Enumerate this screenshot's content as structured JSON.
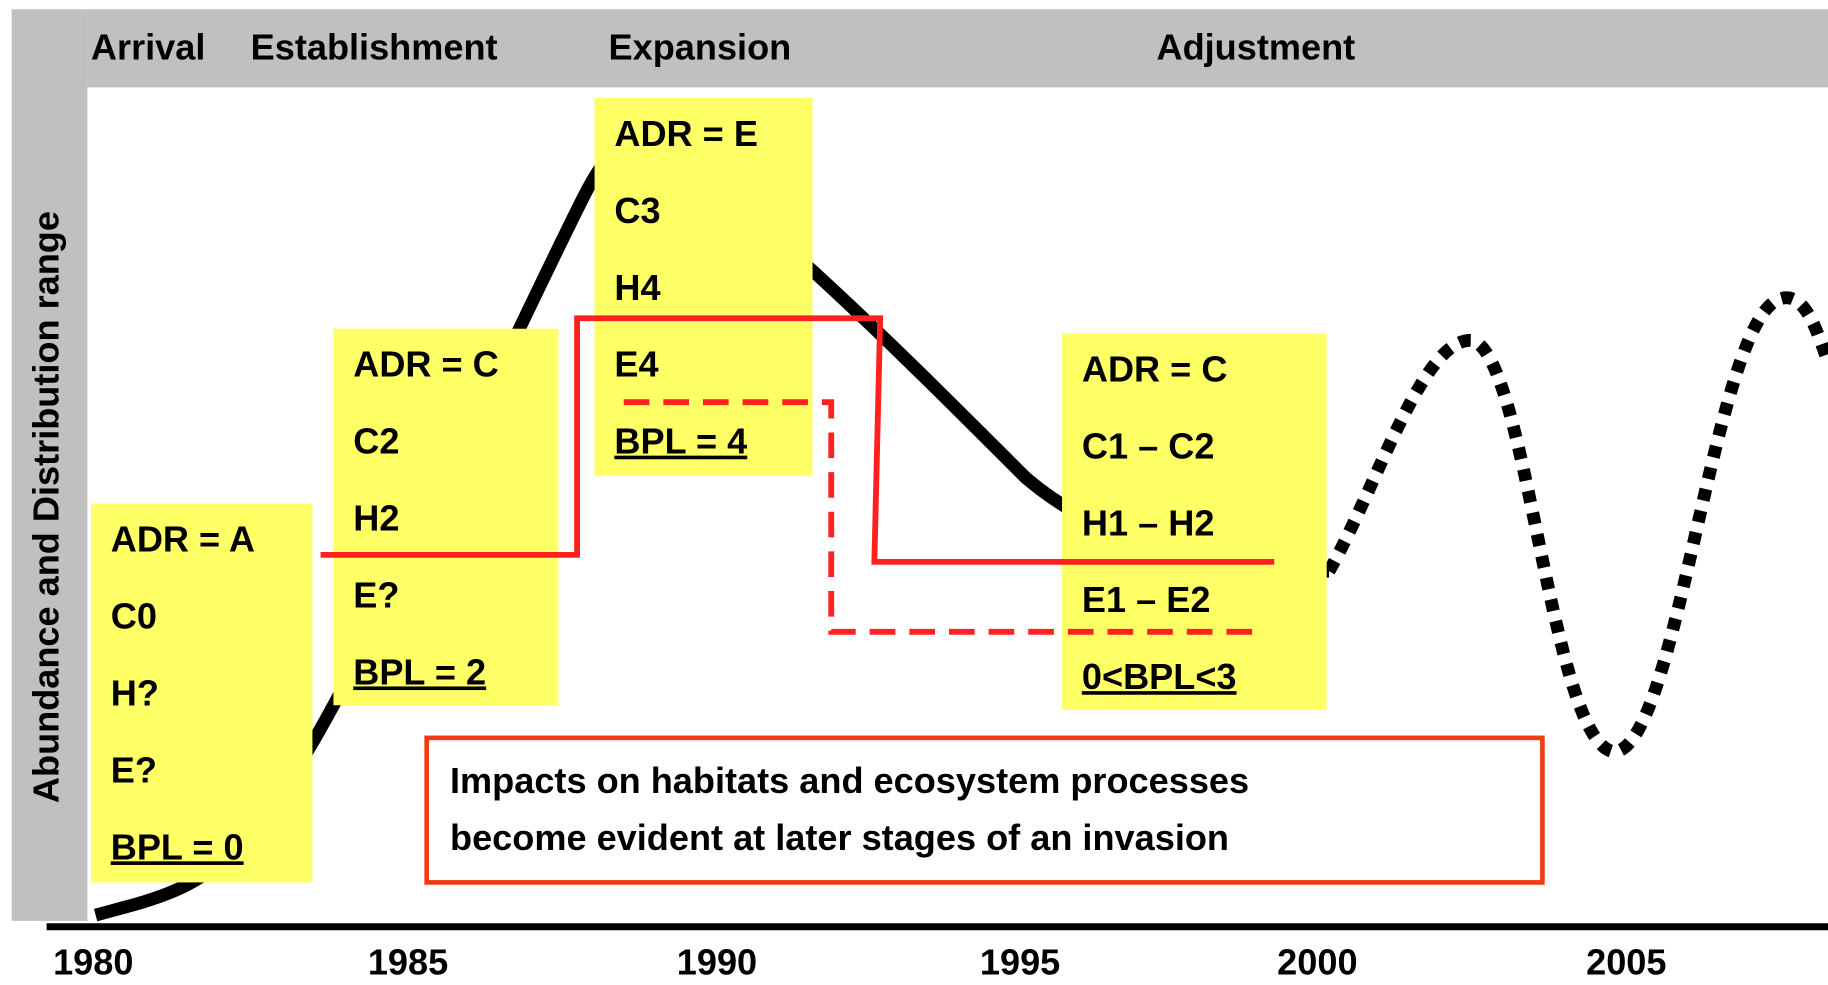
{
  "y_axis_label": "Abundance and Distribution range",
  "stages": [
    "Arrival",
    "Establishment",
    "Expansion",
    "Adjustment"
  ],
  "boxes": [
    {
      "lines": [
        "ADR = A",
        "C0",
        "H?",
        "E?"
      ],
      "bpl": "BPL = 0"
    },
    {
      "lines": [
        "ADR = C",
        "C2",
        "H2",
        "E?"
      ],
      "bpl": "BPL = 2"
    },
    {
      "lines": [
        "ADR = E",
        "C3",
        "H4",
        "E4"
      ],
      "bpl": "BPL = 4"
    },
    {
      "lines": [
        "ADR = C",
        "C1 – C2",
        "H1 – H2",
        "E1 – E2"
      ],
      "bpl": "0<BPL<3"
    }
  ],
  "note": [
    "Impacts on habitats and ecosystem processes",
    "become evident at later stages of an invasion"
  ],
  "x_axis_labels": [
    "1980",
    "1985",
    "1990",
    "1995",
    "2000",
    "2005"
  ]
}
